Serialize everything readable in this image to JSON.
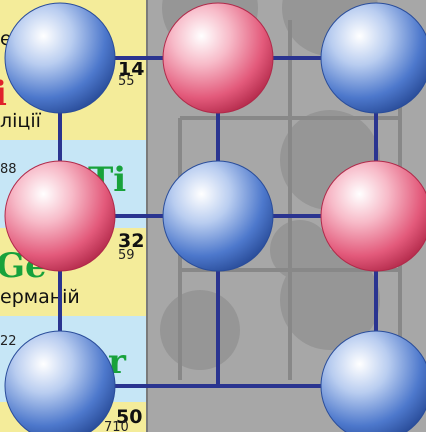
{
  "table_cells": {
    "row0_name": "ерб",
    "row1_number": "14",
    "row1_mass": "55",
    "row1_symbol": "i",
    "row1_name": "ліції",
    "row2_mass": "88",
    "row2_symbol": "Ti",
    "row3_number": "32",
    "row3_mass": "59",
    "row3_symbol": "Ge",
    "row3_name": "ерманій",
    "row4_mass": "22",
    "row4_symbol": "r",
    "row5_number": "50",
    "row5_mass": "710"
  },
  "colors": {
    "cation": "#e8637f",
    "anion": "#5b86d6",
    "bond": "#2a3490"
  }
}
